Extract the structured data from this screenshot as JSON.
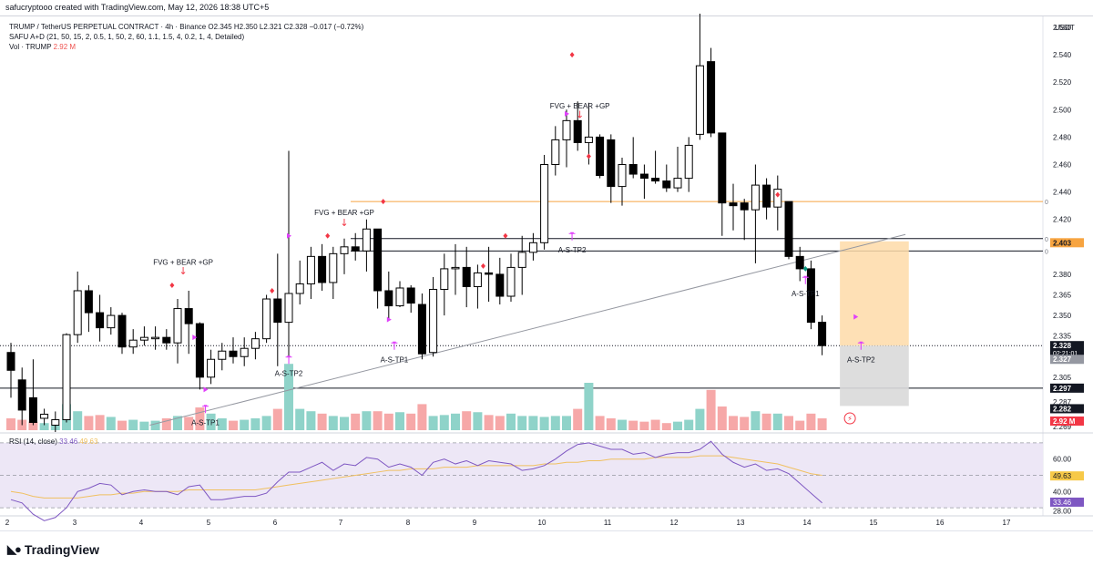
{
  "top_credit": "safucryptooo created with TradingView.com, May 12, 2026 18:38 UTC+5",
  "legend": {
    "line1": "TRUMP / TetherUS PERPETUAL CONTRACT · 4h · Binance  O2.345  H2.350  L2.321  C2.328  −0.017 (−0.72%)",
    "line2": "SAFU A+D (21, 50, 15, 2, 0.5, 1, 50, 2, 60, 1.1, 1.5, 4, 0.2, 1, 4, Detailed)",
    "line3_label": "Vol · TRUMP",
    "line3_value": "2.92 M"
  },
  "footer_brand": "TradingView",
  "colors": {
    "up_body": "#ffffff",
    "down_body": "#000000",
    "wick": "#000000",
    "vol_up": "#8fd3c9",
    "vol_down": "#f6a8a8",
    "rsi_line": "#7e57c2",
    "rsi_ma": "#f0c060",
    "rsi_band": "#ede7f6",
    "orange_line": "#f7a440",
    "trend_line": "#9598a1",
    "target_box": "#fedba8",
    "stop_box": "#d9d9d9",
    "annotation": "#e040fb",
    "signal_red": "#f23645"
  },
  "chart_data": [
    {
      "type": "candlestick",
      "title": "TRUMP / TetherUS PERPETUAL CONTRACT · 4h · Binance",
      "y_unit": "USDT",
      "ylim": [
        2.262,
        2.588
      ],
      "price_ticks": [
        "2.269",
        "2.287",
        "2.305",
        "2.320",
        "2.335",
        "2.350",
        "2.365",
        "2.380",
        "2.403",
        "2.420",
        "2.440",
        "2.460",
        "2.480",
        "2.500",
        "2.520",
        "2.540",
        "2.560"
      ],
      "x_ticks": [
        "2",
        "3",
        "4",
        "5",
        "6",
        "7",
        "8",
        "9",
        "10",
        "11",
        "12",
        "13",
        "14",
        "15",
        "16",
        "17"
      ],
      "candles": [
        {
          "o": 2.323,
          "h": 2.33,
          "l": 2.29,
          "c": 2.31
        },
        {
          "o": 2.303,
          "h": 2.312,
          "l": 2.27,
          "c": 2.281
        },
        {
          "o": 2.29,
          "h": 2.318,
          "l": 2.27,
          "c": 2.272
        },
        {
          "o": 2.275,
          "h": 2.282,
          "l": 2.27,
          "c": 2.278
        },
        {
          "o": 2.27,
          "h": 2.28,
          "l": 2.265,
          "c": 2.274
        },
        {
          "o": 2.274,
          "h": 2.337,
          "l": 2.272,
          "c": 2.336
        },
        {
          "o": 2.336,
          "h": 2.382,
          "l": 2.33,
          "c": 2.368
        },
        {
          "o": 2.368,
          "h": 2.372,
          "l": 2.338,
          "c": 2.352
        },
        {
          "o": 2.352,
          "h": 2.365,
          "l": 2.331,
          "c": 2.341
        },
        {
          "o": 2.341,
          "h": 2.356,
          "l": 2.336,
          "c": 2.35
        },
        {
          "o": 2.35,
          "h": 2.352,
          "l": 2.322,
          "c": 2.327
        },
        {
          "o": 2.327,
          "h": 2.34,
          "l": 2.322,
          "c": 2.332
        },
        {
          "o": 2.332,
          "h": 2.342,
          "l": 2.328,
          "c": 2.334
        },
        {
          "o": 2.333,
          "h": 2.342,
          "l": 2.325,
          "c": 2.334
        },
        {
          "o": 2.334,
          "h": 2.34,
          "l": 2.325,
          "c": 2.33
        },
        {
          "o": 2.33,
          "h": 2.362,
          "l": 2.315,
          "c": 2.355
        },
        {
          "o": 2.355,
          "h": 2.368,
          "l": 2.322,
          "c": 2.344
        },
        {
          "o": 2.344,
          "h": 2.345,
          "l": 2.296,
          "c": 2.305
        },
        {
          "o": 2.305,
          "h": 2.325,
          "l": 2.3,
          "c": 2.318
        },
        {
          "o": 2.318,
          "h": 2.33,
          "l": 2.31,
          "c": 2.324
        },
        {
          "o": 2.324,
          "h": 2.334,
          "l": 2.315,
          "c": 2.32
        },
        {
          "o": 2.32,
          "h": 2.334,
          "l": 2.313,
          "c": 2.326
        },
        {
          "o": 2.326,
          "h": 2.338,
          "l": 2.318,
          "c": 2.333
        },
        {
          "o": 2.333,
          "h": 2.365,
          "l": 2.33,
          "c": 2.362
        },
        {
          "o": 2.362,
          "h": 2.395,
          "l": 2.313,
          "c": 2.345
        },
        {
          "o": 2.345,
          "h": 2.47,
          "l": 2.32,
          "c": 2.366
        },
        {
          "o": 2.366,
          "h": 2.39,
          "l": 2.358,
          "c": 2.373
        },
        {
          "o": 2.373,
          "h": 2.4,
          "l": 2.362,
          "c": 2.393
        },
        {
          "o": 2.393,
          "h": 2.402,
          "l": 2.368,
          "c": 2.374
        },
        {
          "o": 2.374,
          "h": 2.4,
          "l": 2.362,
          "c": 2.395
        },
        {
          "o": 2.395,
          "h": 2.406,
          "l": 2.38,
          "c": 2.4
        },
        {
          "o": 2.4,
          "h": 2.41,
          "l": 2.39,
          "c": 2.397
        },
        {
          "o": 2.397,
          "h": 2.42,
          "l": 2.382,
          "c": 2.413
        },
        {
          "o": 2.413,
          "h": 2.413,
          "l": 2.355,
          "c": 2.368
        },
        {
          "o": 2.368,
          "h": 2.382,
          "l": 2.347,
          "c": 2.357
        },
        {
          "o": 2.357,
          "h": 2.375,
          "l": 2.356,
          "c": 2.37
        },
        {
          "o": 2.37,
          "h": 2.372,
          "l": 2.352,
          "c": 2.359
        },
        {
          "o": 2.358,
          "h": 2.366,
          "l": 2.318,
          "c": 2.322
        },
        {
          "o": 2.323,
          "h": 2.378,
          "l": 2.32,
          "c": 2.369
        },
        {
          "o": 2.369,
          "h": 2.395,
          "l": 2.35,
          "c": 2.384
        },
        {
          "o": 2.384,
          "h": 2.402,
          "l": 2.365,
          "c": 2.385
        },
        {
          "o": 2.385,
          "h": 2.4,
          "l": 2.356,
          "c": 2.371
        },
        {
          "o": 2.371,
          "h": 2.387,
          "l": 2.355,
          "c": 2.381
        },
        {
          "o": 2.381,
          "h": 2.4,
          "l": 2.36,
          "c": 2.38
        },
        {
          "o": 2.38,
          "h": 2.392,
          "l": 2.358,
          "c": 2.364
        },
        {
          "o": 2.364,
          "h": 2.395,
          "l": 2.36,
          "c": 2.385
        },
        {
          "o": 2.385,
          "h": 2.408,
          "l": 2.365,
          "c": 2.396
        },
        {
          "o": 2.396,
          "h": 2.41,
          "l": 2.39,
          "c": 2.403
        },
        {
          "o": 2.403,
          "h": 2.467,
          "l": 2.398,
          "c": 2.46
        },
        {
          "o": 2.46,
          "h": 2.488,
          "l": 2.452,
          "c": 2.478
        },
        {
          "o": 2.478,
          "h": 2.5,
          "l": 2.458,
          "c": 2.492
        },
        {
          "o": 2.492,
          "h": 2.506,
          "l": 2.47,
          "c": 2.476
        },
        {
          "o": 2.476,
          "h": 2.505,
          "l": 2.46,
          "c": 2.48
        },
        {
          "o": 2.48,
          "h": 2.482,
          "l": 2.45,
          "c": 2.452
        },
        {
          "o": 2.478,
          "h": 2.482,
          "l": 2.432,
          "c": 2.444
        },
        {
          "o": 2.444,
          "h": 2.465,
          "l": 2.43,
          "c": 2.46
        },
        {
          "o": 2.46,
          "h": 2.48,
          "l": 2.45,
          "c": 2.453
        },
        {
          "o": 2.453,
          "h": 2.46,
          "l": 2.435,
          "c": 2.45
        },
        {
          "o": 2.45,
          "h": 2.47,
          "l": 2.446,
          "c": 2.448
        },
        {
          "o": 2.448,
          "h": 2.46,
          "l": 2.44,
          "c": 2.443
        },
        {
          "o": 2.443,
          "h": 2.473,
          "l": 2.44,
          "c": 2.45
        },
        {
          "o": 2.45,
          "h": 2.48,
          "l": 2.44,
          "c": 2.474
        },
        {
          "o": 2.482,
          "h": 2.57,
          "l": 2.478,
          "c": 2.532
        },
        {
          "o": 2.535,
          "h": 2.545,
          "l": 2.48,
          "c": 2.483
        },
        {
          "o": 2.483,
          "h": 2.483,
          "l": 2.408,
          "c": 2.432
        },
        {
          "o": 2.432,
          "h": 2.446,
          "l": 2.412,
          "c": 2.43
        },
        {
          "o": 2.432,
          "h": 2.435,
          "l": 2.405,
          "c": 2.427
        },
        {
          "o": 2.427,
          "h": 2.46,
          "l": 2.388,
          "c": 2.445
        },
        {
          "o": 2.445,
          "h": 2.45,
          "l": 2.42,
          "c": 2.429
        },
        {
          "o": 2.429,
          "h": 2.452,
          "l": 2.412,
          "c": 2.442
        },
        {
          "o": 2.433,
          "h": 2.433,
          "l": 2.391,
          "c": 2.393
        },
        {
          "o": 2.393,
          "h": 2.4,
          "l": 2.375,
          "c": 2.384
        },
        {
          "o": 2.384,
          "h": 2.39,
          "l": 2.34,
          "c": 2.345
        },
        {
          "o": 2.345,
          "h": 2.35,
          "l": 2.321,
          "c": 2.328
        }
      ],
      "volume": {
        "values_rel": [
          0.25,
          0.22,
          0.18,
          0.15,
          0.1,
          0.55,
          0.4,
          0.3,
          0.32,
          0.28,
          0.2,
          0.22,
          0.18,
          0.2,
          0.25,
          0.3,
          0.28,
          0.48,
          0.35,
          0.25,
          0.2,
          0.22,
          0.25,
          0.3,
          0.45,
          1.4,
          0.45,
          0.4,
          0.35,
          0.3,
          0.28,
          0.35,
          0.4,
          0.4,
          0.35,
          0.38,
          0.35,
          0.55,
          0.3,
          0.32,
          0.35,
          0.4,
          0.38,
          0.32,
          0.3,
          0.35,
          0.3,
          0.3,
          0.28,
          0.3,
          0.3,
          0.45,
          1.0,
          0.3,
          0.25,
          0.22,
          0.2,
          0.18,
          0.22,
          0.15,
          0.18,
          0.22,
          0.45,
          0.85,
          0.5,
          0.3,
          0.28,
          0.4,
          0.35,
          0.35,
          0.3,
          0.2,
          0.35,
          0.25
        ],
        "current_label": "2.92 M"
      },
      "rsi": {
        "label": "RSI (14, close)",
        "value": "33.46",
        "ma_value": "49.63",
        "ticks": [
          "60.00",
          "40.00",
          "28.00"
        ],
        "levels": [
          70,
          50,
          30
        ],
        "values": [
          35,
          33,
          26,
          22,
          24,
          30,
          40,
          42,
          45,
          44,
          38,
          40,
          41,
          40,
          40,
          38,
          43,
          44,
          35,
          35,
          36,
          37,
          37,
          39,
          46,
          52,
          52,
          55,
          58,
          53,
          57,
          56,
          61,
          60,
          55,
          57,
          55,
          50,
          58,
          60,
          57,
          59,
          56,
          59,
          58,
          57,
          53,
          54,
          56,
          60,
          65,
          69,
          70,
          68,
          66,
          66,
          63,
          64,
          61,
          63,
          64,
          64,
          66,
          71,
          63,
          58,
          55,
          57,
          53,
          54,
          51,
          45,
          39,
          33
        ],
        "ma_values": [
          40,
          39,
          37,
          36,
          36,
          36,
          36,
          37,
          38,
          38,
          39,
          39,
          40,
          40,
          40,
          40,
          41,
          41,
          41,
          41,
          41,
          41,
          41,
          42,
          43,
          44,
          45,
          46,
          47,
          48,
          49,
          50,
          51,
          52,
          53,
          53,
          54,
          54,
          54,
          55,
          55,
          55,
          56,
          56,
          56,
          56,
          56,
          56,
          57,
          57,
          58,
          58,
          59,
          59,
          60,
          60,
          60,
          60,
          61,
          61,
          61,
          61,
          62,
          62,
          62,
          61,
          60,
          59,
          58,
          57,
          55,
          53,
          51,
          50
        ]
      },
      "levels": [
        {
          "name": "orange-level",
          "price": 2.433,
          "tag": "0"
        },
        {
          "name": "upper-black-level",
          "price": 2.406,
          "tag": "0"
        },
        {
          "name": "lower-black-level",
          "price": 2.397,
          "tag": "0"
        },
        {
          "name": "stop-level",
          "price": 2.297
        }
      ],
      "position_box": {
        "start_index": 74.6,
        "end_index": 80.8,
        "target_top": 2.404,
        "entry": 2.328,
        "stop": 2.284
      },
      "trendline": {
        "i0": 12.5,
        "p0": 2.27,
        "i1": 80.5,
        "p1": 2.409
      },
      "price_labels": [
        {
          "value": "2.403",
          "price": 2.403,
          "kind": "orange"
        },
        {
          "value": "2.328",
          "price": 2.328,
          "kind": "black",
          "sub": "02:21:01"
        },
        {
          "value": "2.327",
          "price": 2.318,
          "kind": "gray"
        },
        {
          "value": "2.297",
          "price": 2.297,
          "kind": "black"
        },
        {
          "value": "2.282",
          "price": 2.282,
          "kind": "black"
        },
        {
          "value": "2.92 M",
          "price": 2.273,
          "kind": "red"
        }
      ],
      "annotations": [
        {
          "text": "FVG + BEAR +GP",
          "i": 15.5,
          "price": 2.387
        },
        {
          "text": "FVG + BEAR +GP",
          "i": 30.0,
          "price": 2.423
        },
        {
          "text": "FVG + BEAR +GP",
          "i": 51.2,
          "price": 2.501
        },
        {
          "text": "A-S-TP1",
          "i": 17.5,
          "price": 2.27
        },
        {
          "text": "A-S-TP2",
          "i": 25.0,
          "price": 2.306
        },
        {
          "text": "A-S-TP1",
          "i": 34.5,
          "price": 2.316
        },
        {
          "text": "A-S-TP2",
          "i": 50.5,
          "price": 2.396
        },
        {
          "text": "A-S-TP1",
          "i": 71.5,
          "price": 2.364
        },
        {
          "text": "A-S-TP2",
          "i": 76.5,
          "price": 2.316
        }
      ],
      "tp_markers": [
        {
          "i": 17.5,
          "price": 2.279
        },
        {
          "i": 25.0,
          "price": 2.315
        },
        {
          "i": 34.5,
          "price": 2.325
        },
        {
          "i": 50.5,
          "price": 2.405
        },
        {
          "i": 71.5,
          "price": 2.373
        },
        {
          "i": 76.5,
          "price": 2.325
        }
      ],
      "signal_arrows": [
        {
          "i": 15.5,
          "price": 2.38
        },
        {
          "i": 30.0,
          "price": 2.415
        },
        {
          "i": 51.2,
          "price": 2.494
        }
      ],
      "red_diamonds": [
        {
          "i": 14.5,
          "price": 2.372
        },
        {
          "i": 23.5,
          "price": 2.368
        },
        {
          "i": 28.5,
          "price": 2.408
        },
        {
          "i": 33.5,
          "price": 2.433
        },
        {
          "i": 42.5,
          "price": 2.386
        },
        {
          "i": 44.5,
          "price": 2.408
        },
        {
          "i": 50.5,
          "price": 2.54
        },
        {
          "i": 52.0,
          "price": 2.466
        },
        {
          "i": 69.0,
          "price": 2.438
        }
      ],
      "purple_triangles": [
        {
          "i": 16.5,
          "price": 2.334
        },
        {
          "i": 17.5,
          "price": 2.296
        },
        {
          "i": 25.0,
          "price": 2.408
        },
        {
          "i": 34.0,
          "price": 2.347
        },
        {
          "i": 50.0,
          "price": 2.497
        },
        {
          "i": 76.0,
          "price": 2.349
        }
      ],
      "green_diamonds": [
        {
          "i": 71.5,
          "price": 2.384
        }
      ]
    }
  ]
}
